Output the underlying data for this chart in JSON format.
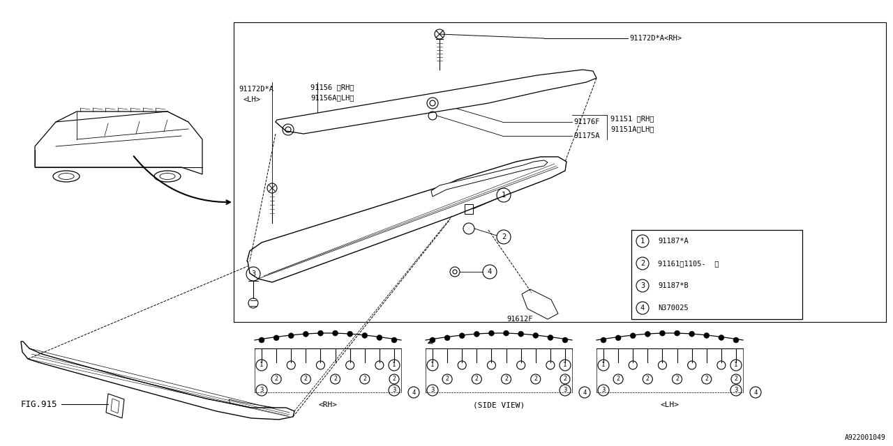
{
  "bg_color": "#ffffff",
  "lc": "#000000",
  "fig_num": "FIG.915",
  "diagram_id": "A922001049",
  "part_91172D_RH": "91172D*A<RH>",
  "part_91172D_LH": "91172D*A",
  "part_91172D_LH2": "<LH>",
  "part_91156_RH": "91156 〈RH〉",
  "part_91156A_LH": "91156A〈LH〉",
  "part_91176F": "91176F",
  "part_91175A": "91175A",
  "part_91151_RH": "91151 〈RH〉",
  "part_91151A_LH": "91151A〈LH〉",
  "part_91612F": "91612F",
  "legend_nums": [
    "1",
    "2",
    "3",
    "4"
  ],
  "legend_parts": [
    "91187*A",
    "91161〈1105-  〉",
    "91187*B",
    "N370025"
  ],
  "view_rh": "〈RH〉",
  "view_side": "(SIDE VIEW)",
  "view_lh": "〈LH〉"
}
